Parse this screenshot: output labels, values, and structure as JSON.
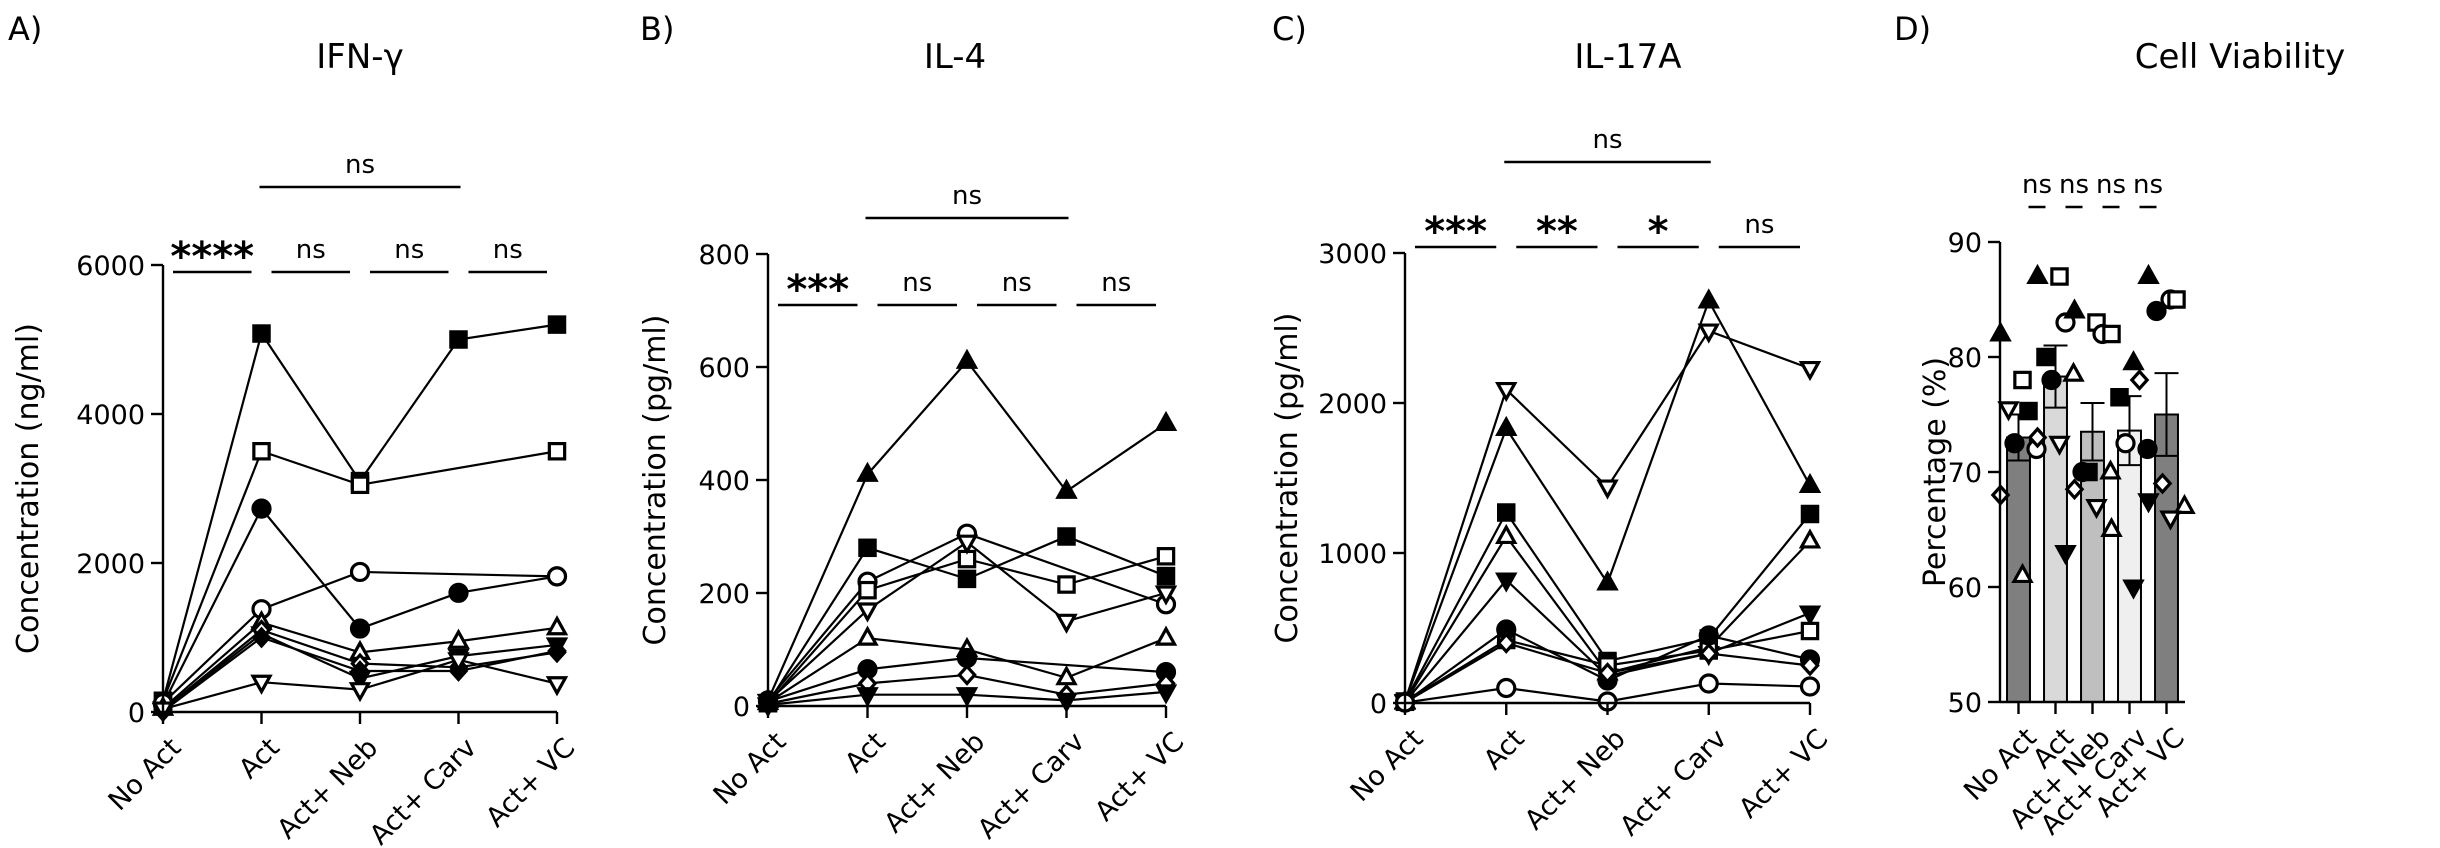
{
  "chart_data": [
    {
      "type": "line",
      "panel_label": "A)",
      "title": "IFN-γ",
      "ylabel": "Concentration (ng/ml)",
      "xlabel": "",
      "ylim": [
        0,
        6000
      ],
      "yticks": [
        0,
        2000,
        4000,
        6000
      ],
      "categories": [
        "No Act",
        "Act",
        "Act+ Neb",
        "Act+ Carv",
        "Act+ VC"
      ],
      "series": [
        {
          "name": "filled-square",
          "values": [
            150,
            5080,
            3100,
            5000,
            5200
          ]
        },
        {
          "name": "open-square",
          "values": [
            150,
            3500,
            3050,
            null,
            3500
          ]
        },
        {
          "name": "filled-circle",
          "values": [
            100,
            2730,
            1120,
            1600,
            1820
          ]
        },
        {
          "name": "open-circle",
          "values": [
            120,
            1380,
            1880,
            null,
            1820
          ]
        },
        {
          "name": "open-triangle-up",
          "values": [
            50,
            1200,
            800,
            950,
            1130
          ]
        },
        {
          "name": "filled-triangle-down",
          "values": [
            20,
            1050,
            450,
            750,
            900
          ]
        },
        {
          "name": "open-diamond",
          "values": [
            30,
            1100,
            650,
            600,
            800
          ]
        },
        {
          "name": "filled-diamond",
          "values": [
            10,
            1000,
            550,
            550,
            820
          ]
        },
        {
          "name": "open-triangle-down",
          "values": [
            40,
            400,
            300,
            700,
            380
          ]
        }
      ],
      "significance": [
        {
          "label": "****",
          "from": 0,
          "to": 1,
          "level": 1
        },
        {
          "label": "ns",
          "from": 1,
          "to": 2,
          "level": 1
        },
        {
          "label": "ns",
          "from": 2,
          "to": 3,
          "level": 1
        },
        {
          "label": "ns",
          "from": 3,
          "to": 4,
          "level": 1
        },
        {
          "label": "ns",
          "from": 1,
          "to": 3,
          "level": 2
        }
      ]
    },
    {
      "type": "line",
      "panel_label": "B)",
      "title": "IL-4",
      "ylabel": "Concentration (pg/ml)",
      "xlabel": "",
      "ylim": [
        0,
        800
      ],
      "yticks": [
        0,
        200,
        400,
        600,
        800
      ],
      "categories": [
        "No Act",
        "Act",
        "Act+ Neb",
        "Act+ Carv",
        "Act+ VC"
      ],
      "series": [
        {
          "name": "filled-triangle-up",
          "values": [
            10,
            410,
            610,
            380,
            500
          ]
        },
        {
          "name": "filled-square",
          "values": [
            5,
            280,
            225,
            300,
            230
          ]
        },
        {
          "name": "open-circle",
          "values": [
            10,
            220,
            305,
            null,
            180
          ]
        },
        {
          "name": "open-square",
          "values": [
            5,
            205,
            260,
            215,
            265
          ]
        },
        {
          "name": "open-triangle-down",
          "values": [
            8,
            170,
            290,
            150,
            200
          ]
        },
        {
          "name": "open-triangle-up",
          "values": [
            6,
            120,
            100,
            50,
            120
          ]
        },
        {
          "name": "filled-circle",
          "values": [
            8,
            65,
            85,
            null,
            60
          ]
        },
        {
          "name": "open-diamond",
          "values": [
            4,
            40,
            55,
            20,
            40
          ]
        },
        {
          "name": "filled-triangle-down",
          "values": [
            2,
            20,
            20,
            10,
            25
          ]
        }
      ],
      "significance": [
        {
          "label": "***",
          "from": 0,
          "to": 1,
          "level": 1
        },
        {
          "label": "ns",
          "from": 1,
          "to": 2,
          "level": 1
        },
        {
          "label": "ns",
          "from": 2,
          "to": 3,
          "level": 1
        },
        {
          "label": "ns",
          "from": 3,
          "to": 4,
          "level": 1
        },
        {
          "label": "ns",
          "from": 1,
          "to": 3,
          "level": 2
        }
      ]
    },
    {
      "type": "line",
      "panel_label": "C)",
      "title": "IL-17A",
      "ylabel": "Concentration (pg/ml)",
      "xlabel": "",
      "ylim": [
        0,
        3000
      ],
      "yticks": [
        0,
        1000,
        2000,
        3000
      ],
      "categories": [
        "No Act",
        "Act",
        "Act+ Neb",
        "Act+ Carv",
        "Act+ VC"
      ],
      "series": [
        {
          "name": "filled-triangle-up",
          "values": [
            10,
            1830,
            800,
            2680,
            1450
          ]
        },
        {
          "name": "open-triangle-down",
          "values": [
            10,
            2090,
            1440,
            2480,
            2230
          ]
        },
        {
          "name": "filled-square",
          "values": [
            10,
            1270,
            280,
            430,
            1260
          ]
        },
        {
          "name": "open-triangle-up",
          "values": [
            5,
            1110,
            200,
            370,
            1080
          ]
        },
        {
          "name": "filled-triangle-down",
          "values": [
            5,
            820,
            180,
            330,
            600
          ]
        },
        {
          "name": "open-square",
          "values": [
            8,
            420,
            250,
            350,
            480
          ]
        },
        {
          "name": "filled-circle",
          "values": [
            6,
            490,
            150,
            450,
            290
          ]
        },
        {
          "name": "open-diamond",
          "values": [
            4,
            400,
            200,
            330,
            250
          ]
        },
        {
          "name": "open-circle",
          "values": [
            3,
            100,
            10,
            130,
            110
          ]
        }
      ],
      "significance": [
        {
          "label": "***",
          "from": 0,
          "to": 1,
          "level": 1
        },
        {
          "label": "**",
          "from": 1,
          "to": 2,
          "level": 1
        },
        {
          "label": "*",
          "from": 2,
          "to": 3,
          "level": 1
        },
        {
          "label": "ns",
          "from": 3,
          "to": 4,
          "level": 1
        },
        {
          "label": "ns",
          "from": 1,
          "to": 3,
          "level": 2
        }
      ]
    },
    {
      "type": "bar",
      "panel_label": "D)",
      "title": "Cell Viability",
      "ylabel": "Percentage (%)",
      "xlabel": "",
      "ylim": [
        50,
        90
      ],
      "yticks": [
        50,
        60,
        70,
        80,
        90
      ],
      "categories": [
        "No Act",
        "Act",
        "Act+ Neb",
        "Act+ Carv",
        "Act+ VC"
      ],
      "values": [
        73,
        78.3,
        73.5,
        73.6,
        75
      ],
      "errors": [
        2,
        2.7,
        2.5,
        3,
        3.6
      ],
      "bar_colors": [
        "#7f7f7f",
        "#d9d9d9",
        "#bfbfbf",
        "#efefef",
        "#7f7f7f"
      ],
      "points": [
        [
          {
            "m": "filled-triangle-up",
            "v": 82
          },
          {
            "m": "open-square",
            "v": 78
          },
          {
            "m": "filled-square",
            "v": 75.3
          },
          {
            "m": "open-triangle-down",
            "v": 75.5
          },
          {
            "m": "filled-circle",
            "v": 72.5
          },
          {
            "m": "open-circle",
            "v": 72
          },
          {
            "m": "open-diamond",
            "v": 68
          },
          {
            "m": "open-triangle-up",
            "v": 61
          }
        ],
        [
          {
            "m": "filled-triangle-up",
            "v": 87
          },
          {
            "m": "open-square",
            "v": 87
          },
          {
            "m": "open-circle",
            "v": 83
          },
          {
            "m": "filled-square",
            "v": 80
          },
          {
            "m": "filled-circle",
            "v": 78
          },
          {
            "m": "open-triangle-up",
            "v": 78.5
          },
          {
            "m": "open-diamond",
            "v": 73
          },
          {
            "m": "open-triangle-down",
            "v": 72.5
          },
          {
            "m": "filled-triangle-down",
            "v": 63
          }
        ],
        [
          {
            "m": "filled-triangle-up",
            "v": 84
          },
          {
            "m": "open-square",
            "v": 83
          },
          {
            "m": "open-circle",
            "v": 82
          },
          {
            "m": "filled-circle",
            "v": 70
          },
          {
            "m": "filled-square",
            "v": 70
          },
          {
            "m": "open-triangle-up",
            "v": 70
          },
          {
            "m": "open-diamond",
            "v": 68.5
          },
          {
            "m": "open-triangle-down",
            "v": 67
          }
        ],
        [
          {
            "m": "open-square",
            "v": 82
          },
          {
            "m": "filled-triangle-up",
            "v": 79.5
          },
          {
            "m": "open-diamond",
            "v": 78
          },
          {
            "m": "filled-square",
            "v": 76.5
          },
          {
            "m": "open-circle",
            "v": 72.5
          },
          {
            "m": "filled-circle",
            "v": 72
          },
          {
            "m": "open-triangle-up",
            "v": 65
          },
          {
            "m": "filled-triangle-down",
            "v": 60
          }
        ],
        [
          {
            "m": "filled-triangle-up",
            "v": 87
          },
          {
            "m": "open-circle",
            "v": 85
          },
          {
            "m": "open-square",
            "v": 85
          },
          {
            "m": "filled-circle",
            "v": 84
          },
          {
            "m": "open-diamond",
            "v": 69
          },
          {
            "m": "open-triangle-up",
            "v": 67
          },
          {
            "m": "filled-triangle-down",
            "v": 67.5
          },
          {
            "m": "open-triangle-down",
            "v": 66
          }
        ]
      ],
      "significance": [
        {
          "label": "ns",
          "from": 0,
          "to": 1,
          "level": 1
        },
        {
          "label": "ns",
          "from": 1,
          "to": 2,
          "level": 1
        },
        {
          "label": "ns",
          "from": 2,
          "to": 3,
          "level": 1
        },
        {
          "label": "ns",
          "from": 3,
          "to": 4,
          "level": 1
        }
      ]
    }
  ]
}
